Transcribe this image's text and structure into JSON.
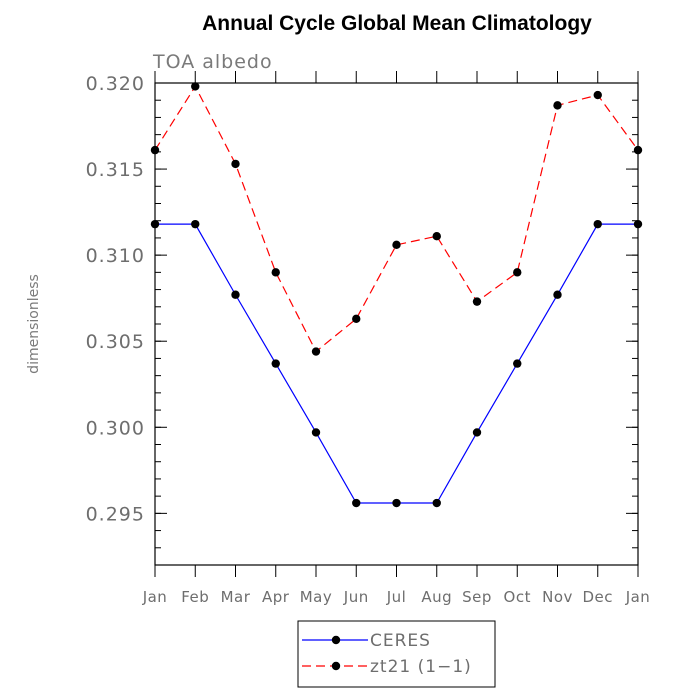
{
  "chart_data": {
    "type": "line",
    "title": "Annual Cycle Global Mean Climatology",
    "subtitle": "TOA albedo",
    "ylabel": "dimensionless",
    "xlabel": "",
    "categories": [
      "Jan",
      "Feb",
      "Mar",
      "Apr",
      "May",
      "Jun",
      "Jul",
      "Aug",
      "Sep",
      "Oct",
      "Nov",
      "Dec",
      "Jan"
    ],
    "ylim": [
      0.292,
      0.32
    ],
    "yticks": [
      "0.295",
      "0.300",
      "0.305",
      "0.310",
      "0.315",
      "0.320"
    ],
    "grid": false,
    "legend_position": "bottom",
    "series": [
      {
        "name": "CERES",
        "color": "#0000ff",
        "dash": "solid",
        "marker": "filled-circle",
        "values": [
          0.3118,
          0.3118,
          0.3077,
          0.3037,
          0.2997,
          0.2956,
          0.2956,
          0.2956,
          0.2997,
          0.3037,
          0.3077,
          0.3118,
          0.3118
        ]
      },
      {
        "name": "zt21 (1−1)",
        "color": "#ff0000",
        "dash": "dashed",
        "marker": "filled-circle",
        "values": [
          0.3161,
          0.3198,
          0.3153,
          0.309,
          0.3044,
          0.3063,
          0.3106,
          0.3111,
          0.3073,
          0.309,
          0.3187,
          0.3193,
          0.3161
        ]
      }
    ]
  }
}
